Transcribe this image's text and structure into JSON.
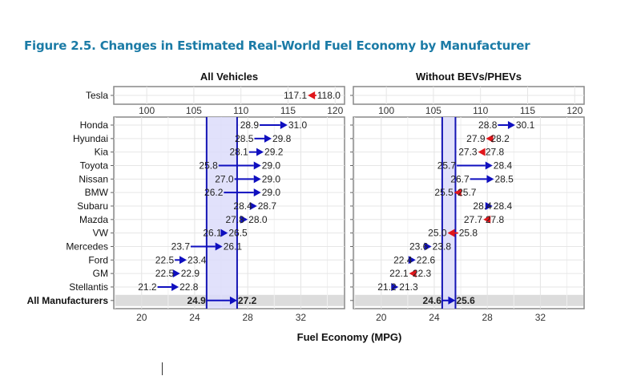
{
  "figure_title": "Figure 2.5. Changes in Estimated Real-World Fuel Economy by Manufacturer",
  "chart_data": [
    {
      "type": "arrow-dot",
      "title": "All Vehicles",
      "xlabel": "Fuel Economy (MPG)",
      "xlim": [
        17.9,
        35.3
      ],
      "xticks": [
        20,
        24,
        28,
        32
      ],
      "top_xlim": [
        96.5,
        121
      ],
      "top_xticks": [
        100,
        105,
        110,
        115,
        120
      ],
      "grid": true,
      "categories": [
        "Tesla",
        "Honda",
        "Hyundai",
        "Kia",
        "Toyota",
        "Nissan",
        "BMW",
        "Subaru",
        "Mazda",
        "VW",
        "Mercedes",
        "Ford",
        "GM",
        "Stellantis",
        "All Manufacturers"
      ],
      "from": [
        118.0,
        28.9,
        28.5,
        28.1,
        25.8,
        27.0,
        26.2,
        28.4,
        27.8,
        26.1,
        23.7,
        22.5,
        22.5,
        21.2,
        24.9
      ],
      "to": [
        117.1,
        31.0,
        29.8,
        29.2,
        29.0,
        29.0,
        29.0,
        28.7,
        28.0,
        26.5,
        26.1,
        23.4,
        22.9,
        22.8,
        27.2
      ],
      "reference_band": [
        24.9,
        27.2
      ]
    },
    {
      "type": "arrow-dot",
      "title": "Without BEVs/PHEVs",
      "xlim": [
        17.9,
        35.3
      ],
      "xticks": [
        20,
        24,
        28,
        32
      ],
      "top_xlim": [
        96.5,
        121
      ],
      "top_xticks": [
        100,
        105,
        110,
        115,
        120
      ],
      "grid": true,
      "categories": [
        "Tesla",
        "Honda",
        "Hyundai",
        "Kia",
        "Toyota",
        "Nissan",
        "BMW",
        "Subaru",
        "Mazda",
        "VW",
        "Mercedes",
        "Ford",
        "GM",
        "Stellantis",
        "All Manufacturers"
      ],
      "from": [
        null,
        28.8,
        28.2,
        27.8,
        25.7,
        26.7,
        25.7,
        28.4,
        27.8,
        25.8,
        23.6,
        22.4,
        22.3,
        21.2,
        24.6
      ],
      "to": [
        null,
        30.1,
        27.9,
        27.3,
        28.4,
        28.5,
        25.5,
        28.4,
        27.7,
        25.0,
        23.8,
        22.6,
        22.1,
        21.3,
        25.6
      ],
      "reference_band": [
        24.6,
        25.6
      ]
    }
  ],
  "colors": {
    "increase": "#0f0fbf",
    "decrease": "#e0161b",
    "band": "#dcdcfa",
    "title": "#1b7ba6",
    "total_row": "#dcdcdc"
  }
}
